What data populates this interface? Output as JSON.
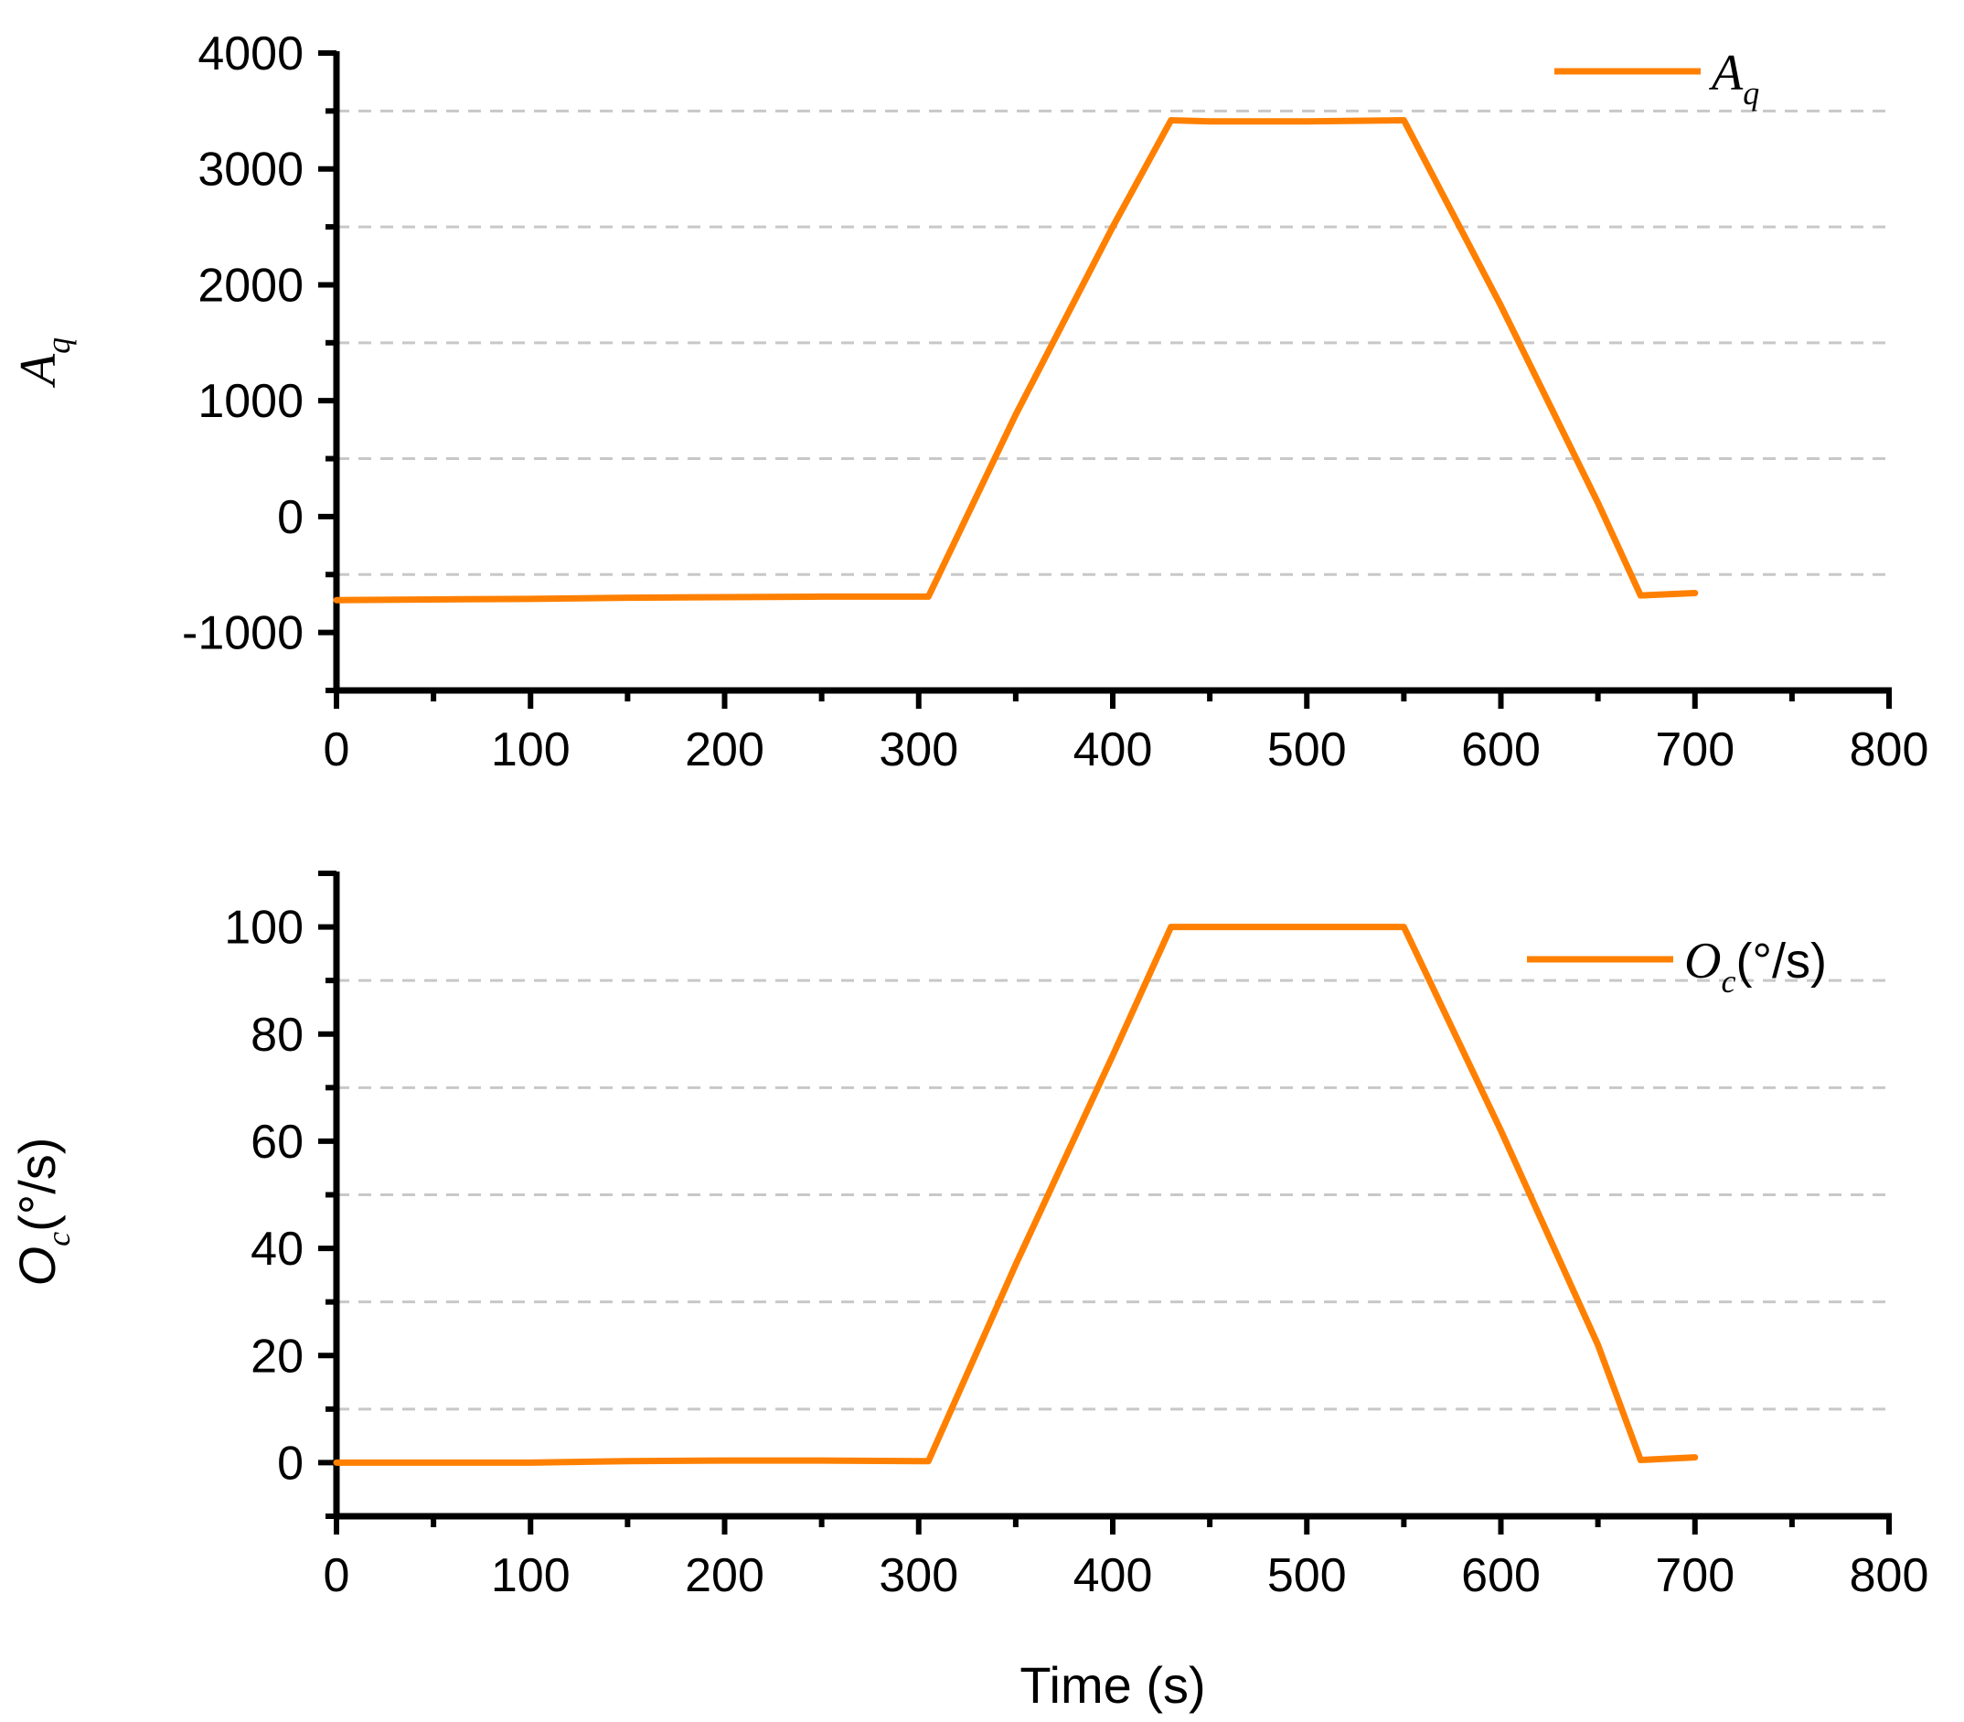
{
  "colors": {
    "series": "#ff8000",
    "axis": "#000000",
    "grid": "#c8c8c8"
  },
  "chart_data": [
    {
      "type": "line",
      "xlabel": "",
      "ylabel": {
        "main": "A",
        "sub": "q"
      },
      "xlim": [
        0,
        800
      ],
      "ylim": [
        -1500,
        4000
      ],
      "xticks": [
        "0",
        "100",
        "200",
        "300",
        "400",
        "500",
        "600",
        "700",
        "800"
      ],
      "yticks": [
        "-1000",
        "0",
        "1000",
        "2000",
        "3000",
        "4000"
      ],
      "ytick_values": [
        -1000,
        0,
        1000,
        2000,
        3000,
        4000
      ],
      "grid_values": [
        -500,
        500,
        1500,
        2500,
        3500
      ],
      "grid": "dashed horizontal",
      "legend_position": "top-right",
      "series": [
        {
          "name": {
            "main": "A",
            "sub": "q",
            "suffix": ""
          },
          "x": [
            0,
            50,
            100,
            150,
            200,
            250,
            300,
            305,
            350,
            400,
            430,
            450,
            500,
            550,
            600,
            650,
            672,
            700
          ],
          "y": [
            -720,
            -715,
            -710,
            -700,
            -695,
            -690,
            -690,
            -690,
            880,
            2500,
            3420,
            3410,
            3410,
            3420,
            1820,
            120,
            -680,
            -660
          ]
        }
      ]
    },
    {
      "type": "line",
      "xlabel": "Time (s)",
      "ylabel": {
        "main": "O",
        "sub": "c",
        "suffix": "(°/s)"
      },
      "xlim": [
        0,
        800
      ],
      "ylim": [
        -10,
        110
      ],
      "xticks": [
        "0",
        "100",
        "200",
        "300",
        "400",
        "500",
        "600",
        "700",
        "800"
      ],
      "yticks": [
        "0",
        "20",
        "40",
        "60",
        "80",
        "100"
      ],
      "ytick_values": [
        0,
        20,
        40,
        60,
        80,
        100
      ],
      "grid_values": [
        10,
        30,
        50,
        70,
        90
      ],
      "grid": "dashed horizontal",
      "legend_position": "top-right",
      "series": [
        {
          "name": {
            "main": "O",
            "sub": "c",
            "suffix": "(°/s)"
          },
          "x": [
            0,
            50,
            100,
            150,
            200,
            250,
            300,
            305,
            350,
            400,
            430,
            450,
            500,
            550,
            600,
            650,
            672,
            700
          ],
          "y": [
            0,
            0,
            0,
            0.3,
            0.4,
            0.4,
            0.3,
            0.3,
            37,
            76,
            100,
            100,
            100,
            100,
            62,
            22,
            0.5,
            1
          ]
        }
      ]
    }
  ]
}
